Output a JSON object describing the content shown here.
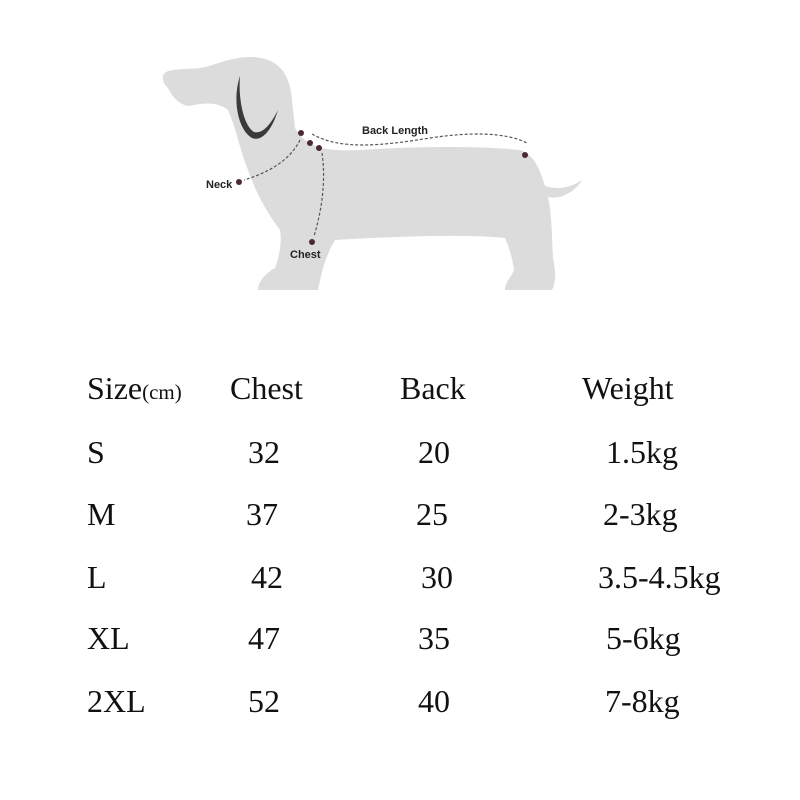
{
  "diagram": {
    "labels": {
      "back_length": "Back Length",
      "neck": "Neck",
      "chest": "Chest"
    },
    "colors": {
      "silhouette": "#dcdcdc",
      "marker": "#4a2a30",
      "ear": "#3a3a3a"
    }
  },
  "table": {
    "headers": {
      "size": "Size",
      "size_unit": "(cm)",
      "chest": "Chest",
      "back": "Back",
      "weight": "Weight"
    },
    "rows": [
      {
        "size": "S",
        "chest": "32",
        "back": "20",
        "weight": "1.5kg"
      },
      {
        "size": "M",
        "chest": "37",
        "back": "25",
        "weight": "2-3kg"
      },
      {
        "size": "L",
        "chest": "42",
        "back": "30",
        "weight": "3.5-4.5kg"
      },
      {
        "size": "XL",
        "chest": "47",
        "back": "35",
        "weight": "5-6kg"
      },
      {
        "size": "2XL",
        "chest": "52",
        "back": "40",
        "weight": "7-8kg"
      }
    ]
  }
}
